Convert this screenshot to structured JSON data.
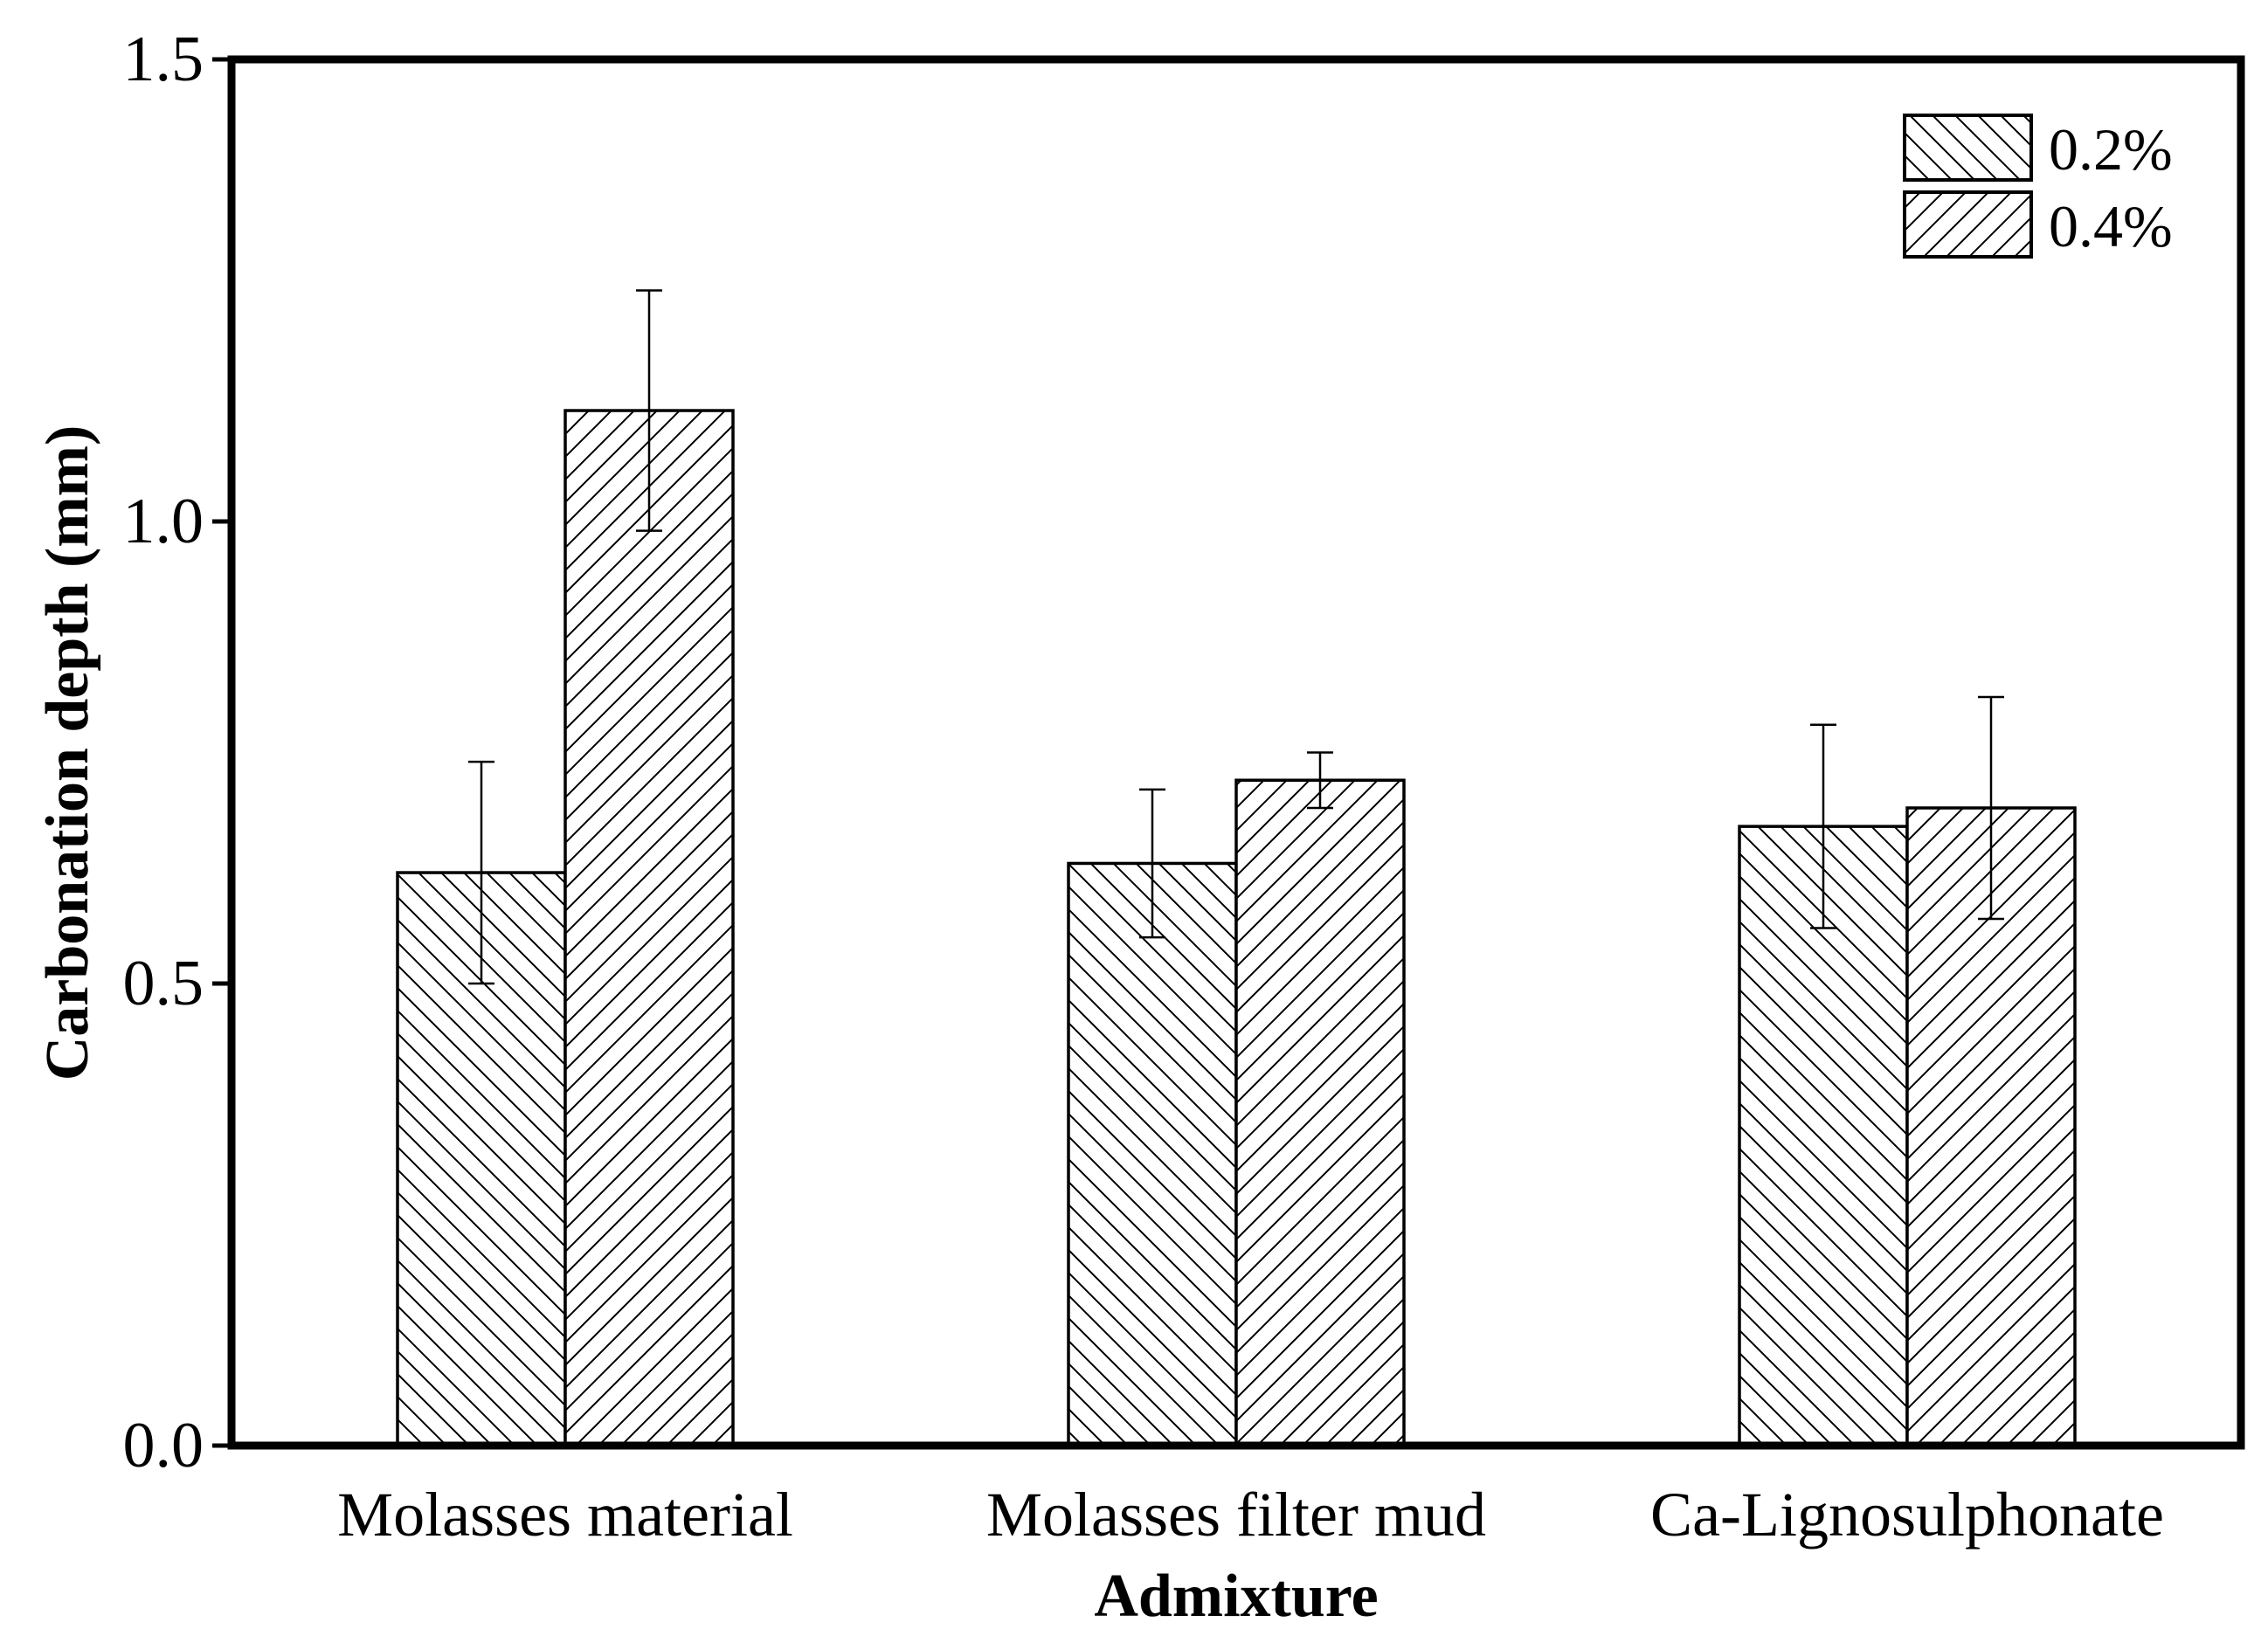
{
  "chart_data": {
    "type": "bar",
    "title": "",
    "xlabel": "Admixture",
    "ylabel": "Carbonation depth (mm)",
    "ylim": [
      0.0,
      1.5
    ],
    "yticks": [
      {
        "value": 0.0,
        "label": "0.0"
      },
      {
        "value": 0.5,
        "label": "0.5"
      },
      {
        "value": 1.0,
        "label": "1.0"
      },
      {
        "value": 1.5,
        "label": "1.5"
      }
    ],
    "grid": false,
    "legend_position": "top-right",
    "categories": [
      "Molasses material",
      "Molasses filter mud",
      "Ca-Lignosulphonate"
    ],
    "series": [
      {
        "name": "0.2%",
        "hatch": "backslash",
        "values": [
          0.62,
          0.63,
          0.67
        ],
        "errors": [
          0.12,
          0.08,
          0.11
        ]
      },
      {
        "name": "0.4%",
        "hatch": "slash",
        "values": [
          1.12,
          0.72,
          0.69
        ],
        "errors": [
          0.13,
          0.03,
          0.12
        ]
      }
    ]
  },
  "colors": {
    "axis": "#000000",
    "bar_fill": "#ffffff",
    "hatch": "#000000"
  }
}
